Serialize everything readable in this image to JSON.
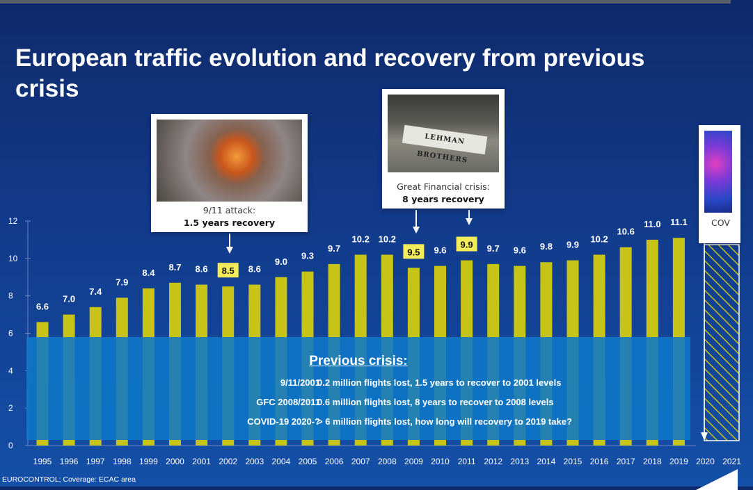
{
  "title": "European traffic evolution and recovery from previous crisis",
  "footer": "EUROCONTROL; Coverage: ECAC area",
  "colors": {
    "bar": "#c8c417",
    "highlight": "#f2ec5a",
    "panel": "#0e78c8"
  },
  "chart_data": {
    "type": "bar",
    "title": "",
    "xlabel": "",
    "ylabel": "",
    "ylim": [
      0,
      12
    ],
    "yticks": [
      0,
      2,
      4,
      6,
      8,
      10,
      12
    ],
    "grid": false,
    "categories": [
      "1995",
      "1996",
      "1997",
      "1998",
      "1999",
      "2000",
      "2001",
      "2002",
      "2003",
      "2004",
      "2005",
      "2006",
      "2007",
      "2008",
      "2009",
      "2010",
      "2011",
      "2012",
      "2013",
      "2014",
      "2015",
      "2016",
      "2017",
      "2018",
      "2019",
      "2020",
      "2021"
    ],
    "series": [
      {
        "values": [
          6.6,
          7.0,
          7.4,
          7.9,
          8.4,
          8.7,
          8.6,
          8.5,
          8.6,
          9.0,
          9.3,
          9.7,
          10.2,
          10.2,
          9.5,
          9.6,
          9.9,
          9.7,
          9.6,
          9.8,
          9.9,
          10.2,
          10.6,
          11.0,
          11.1,
          null,
          null
        ]
      }
    ],
    "labels": [
      "6.6",
      "7.0",
      "7.4",
      "7.9",
      "8.4",
      "8.7",
      "8.6",
      "8.5",
      "8.6",
      "9.0",
      "9.3",
      "9.7",
      "10.2",
      "10.2",
      "9.5",
      "9.6",
      "9.9",
      "9.7",
      "9.6",
      "9.8",
      "9.9",
      "10.2",
      "10.6",
      "11.0",
      "11.1",
      "",
      ""
    ],
    "highlighted": [
      "2002",
      "2009",
      "2011"
    ]
  },
  "callouts": {
    "attack": {
      "caption": "9/11 attack:",
      "bold": "1.5 years recovery"
    },
    "gfc": {
      "caption": "Great Financial crisis:",
      "bold": "8 years recovery",
      "sign": "LEHMAN BROTHERS"
    },
    "covid": {
      "caption": "COV"
    }
  },
  "crisis": {
    "title": "Previous crisis:",
    "rows": [
      {
        "label": "9/11/2001",
        "text": "0.2 million flights lost, 1.5 years to recover to 2001 levels"
      },
      {
        "label": "GFC 2008/2011",
        "text": "0.6 million flights lost, 8 years to recover to 2008 levels"
      },
      {
        "label": "COVID-19 2020-?",
        "text": "> 6 million flights lost, how long will recovery to 2019 take?"
      }
    ]
  }
}
